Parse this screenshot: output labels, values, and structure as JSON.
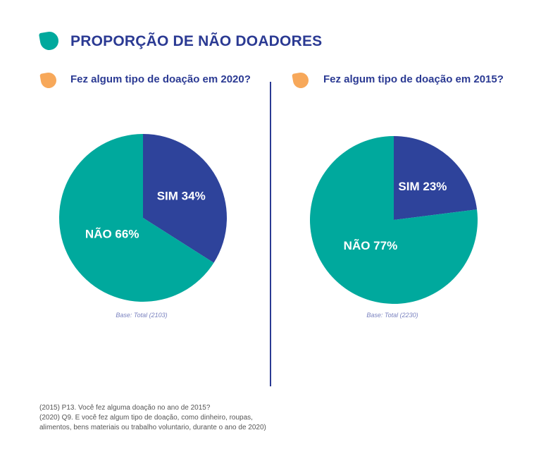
{
  "page": {
    "title": "PROPORÇÃO DE NÃO DOADORES"
  },
  "colors": {
    "title": "#2b3a93",
    "sim": "#2e439b",
    "nao": "#00a99d",
    "title_drop": "#00a99d",
    "chart_drop": "#f7a85a",
    "base_note": "#7a82bf"
  },
  "chart_data": [
    {
      "type": "pie",
      "title": "Fez algum tipo de doação em 2020?",
      "note": "Base: Total (2103)",
      "slices": [
        {
          "label": "SIM 34%",
          "name": "SIM",
          "value": 34
        },
        {
          "label": "NÃO 66%",
          "name": "NÃO",
          "value": 66
        }
      ]
    },
    {
      "type": "pie",
      "title": "Fez algum tipo de doação em 2015?",
      "note": "Base: Total (2230)",
      "slices": [
        {
          "label": "SIM 23%",
          "name": "SIM",
          "value": 23
        },
        {
          "label": "NÃO 77%",
          "name": "NÃO",
          "value": 77
        }
      ]
    }
  ],
  "footnotes": [
    "(2015) P13. Você fez alguma doação no ano de 2015?",
    "(2020) Q9. E você fez algum tipo de doação, como dinheiro, roupas,",
    "alimentos, bens materiais ou trabalho voluntario, durante o ano de 2020)"
  ]
}
